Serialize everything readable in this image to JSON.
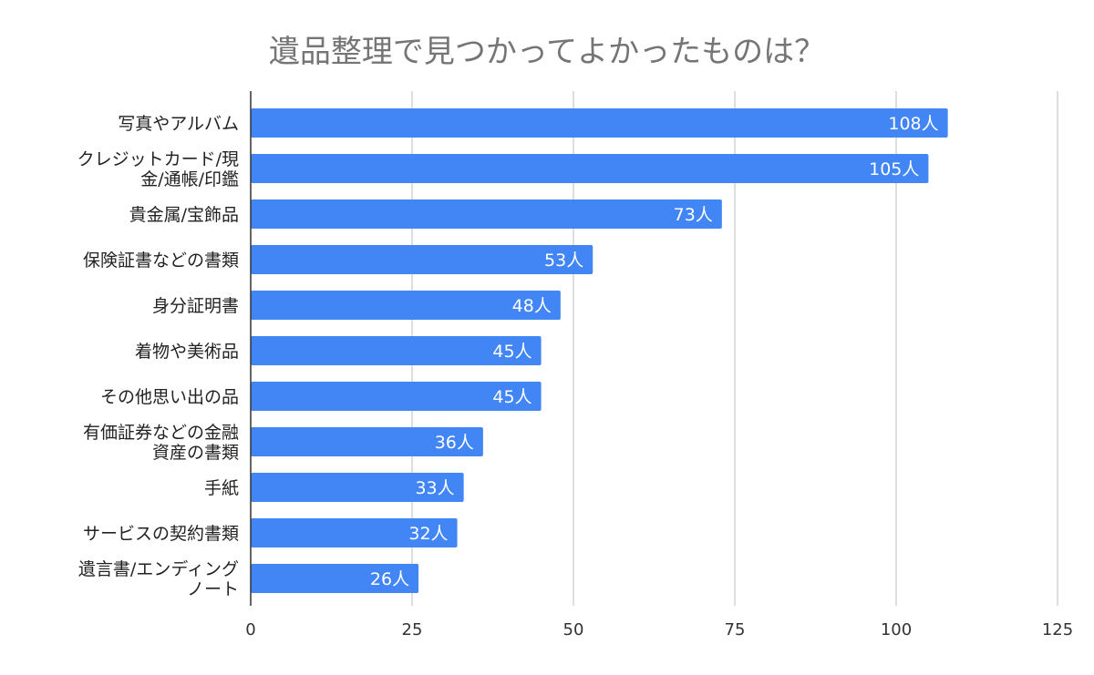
{
  "chart_data": {
    "type": "bar",
    "orientation": "horizontal",
    "title": "遺品整理で見つかってよかったものは？",
    "categories": [
      [
        "写真やアルバム"
      ],
      [
        "クレジットカード/現",
        "金/通帳/印鑑"
      ],
      [
        "貴金属/宝飾品"
      ],
      [
        "保険証書などの書類"
      ],
      [
        "身分証明書"
      ],
      [
        "着物や美術品"
      ],
      [
        "その他思い出の品"
      ],
      [
        "有価証券などの金融",
        "資産の書類"
      ],
      [
        "手紙"
      ],
      [
        "サービスの契約書類"
      ],
      [
        "遺言書/エンディング",
        "ノート"
      ]
    ],
    "values": [
      108,
      105,
      73,
      53,
      48,
      45,
      45,
      36,
      33,
      32,
      26
    ],
    "data_labels": [
      "108人",
      "105人",
      "73人",
      "53人",
      "48人",
      "45人",
      "45人",
      "36人",
      "33人",
      "32人",
      "26人"
    ],
    "xlim": [
      0,
      125
    ],
    "x_ticks": [
      "0",
      "25",
      "50",
      "75",
      "100",
      "125"
    ],
    "grid": true,
    "colors": {
      "bar": "#4285f4",
      "grid": "#cccccc",
      "axis": "#333333"
    }
  }
}
